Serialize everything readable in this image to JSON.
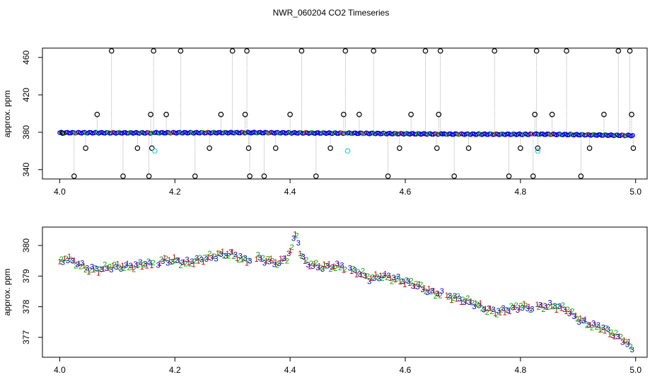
{
  "figure": {
    "title": "NWR_060204  CO2 Timeseries"
  },
  "chart_data": [
    {
      "type": "scatter",
      "panel": "top",
      "title": "",
      "xlabel": "",
      "ylabel": "approx. ppm",
      "xlim": [
        3.97,
        5.02
      ],
      "ylim": [
        330,
        470
      ],
      "xticks": [
        4.0,
        4.2,
        4.4,
        4.6,
        4.8,
        5.0
      ],
      "xtick_labels": [
        "4.0",
        "4.2",
        "4.4",
        "4.6",
        "4.8",
        "5.0"
      ],
      "yticks": [
        340,
        380,
        420,
        460
      ],
      "ytick_labels": [
        "340",
        "380",
        "420",
        "460"
      ],
      "grid": false,
      "legend": "none",
      "colors": {
        "baseline": "#0000cc",
        "baseline_alt": "#00aa00",
        "baseline_mark": "#cc3300",
        "outlier": "#000000",
        "flagged": "#33cccc",
        "spike": "#9a9a9a"
      },
      "baseline_segments": [
        {
          "x": [
            4.0,
            4.16
          ],
          "y": [
            379.5,
            379.3
          ]
        },
        {
          "x": [
            4.165,
            4.335
          ],
          "y": [
            379.4,
            379.6
          ]
        },
        {
          "x": [
            4.335,
            4.495
          ],
          "y": [
            379.6,
            379.0
          ]
        },
        {
          "x": [
            4.5,
            4.665
          ],
          "y": [
            379.0,
            378.0
          ]
        },
        {
          "x": [
            4.665,
            4.82
          ],
          "y": [
            378.0,
            377.8
          ]
        },
        {
          "x": [
            4.825,
            4.995
          ],
          "y": [
            378.0,
            376.5
          ]
        }
      ],
      "outliers": {
        "x": [
          4.005,
          4.025,
          4.045,
          4.065,
          4.09,
          4.11,
          4.135,
          4.155,
          4.158,
          4.16,
          4.163,
          4.185,
          4.21,
          4.235,
          4.26,
          4.28,
          4.3,
          4.322,
          4.325,
          4.328,
          4.33,
          4.355,
          4.375,
          4.4,
          4.42,
          4.445,
          4.47,
          4.493,
          4.496,
          4.52,
          4.545,
          4.57,
          4.59,
          4.61,
          4.635,
          4.655,
          4.658,
          4.661,
          4.685,
          4.71,
          4.755,
          4.78,
          4.8,
          4.822,
          4.825,
          4.828,
          4.83,
          4.855,
          4.88,
          4.905,
          4.92,
          4.945,
          4.97,
          4.99,
          4.993,
          4.996
        ],
        "y": [
          379,
          333,
          363,
          399,
          467,
          333,
          363,
          333,
          399,
          363,
          467,
          399,
          467,
          333,
          363,
          399,
          467,
          399,
          467,
          363,
          333,
          333,
          363,
          399,
          467,
          333,
          363,
          399,
          467,
          399,
          467,
          333,
          363,
          399,
          467,
          363,
          399,
          467,
          333,
          363,
          467,
          333,
          363,
          333,
          399,
          467,
          363,
          399,
          467,
          333,
          363,
          399,
          467,
          467,
          399,
          363
        ]
      },
      "flagged": {
        "x": [
          4.165,
          4.5,
          4.83
        ],
        "y": [
          360,
          360,
          360
        ]
      }
    },
    {
      "type": "scatter",
      "panel": "bottom",
      "title": "",
      "xlabel": "",
      "ylabel": "approx. ppm",
      "xlim": [
        3.97,
        5.02
      ],
      "ylim": [
        376.35,
        380.6
      ],
      "xticks": [
        4.0,
        4.2,
        4.4,
        4.6,
        4.8,
        5.0
      ],
      "xtick_labels": [
        "4.0",
        "4.2",
        "4.4",
        "4.6",
        "4.8",
        "5.0"
      ],
      "yticks": [
        377,
        378,
        379,
        380
      ],
      "ytick_labels": [
        "377",
        "378",
        "379",
        "380"
      ],
      "grid": false,
      "legend": "none",
      "marker_labels": [
        "1",
        "2",
        "3"
      ],
      "marker_colors": [
        "#cc0000",
        "#00aa00",
        "#0000cc"
      ],
      "x": [
        4.0,
        4.01,
        4.02,
        4.03,
        4.05,
        4.07,
        4.09,
        4.11,
        4.13,
        4.15,
        4.16,
        4.18,
        4.2,
        4.22,
        4.24,
        4.26,
        4.28,
        4.3,
        4.32,
        4.33,
        4.34,
        4.36,
        4.38,
        4.395,
        4.405,
        4.41,
        4.415,
        4.42,
        4.43,
        4.45,
        4.47,
        4.49,
        4.5,
        4.52,
        4.54,
        4.56,
        4.58,
        4.6,
        4.62,
        4.64,
        4.66,
        4.68,
        4.7,
        4.72,
        4.74,
        4.76,
        4.78,
        4.8,
        4.82,
        4.84,
        4.86,
        4.88,
        4.9,
        4.92,
        4.94,
        4.96,
        4.98,
        4.995
      ],
      "y": [
        379.4,
        379.6,
        379.5,
        379.4,
        379.2,
        379.2,
        379.3,
        379.3,
        379.3,
        379.4,
        379.35,
        379.5,
        379.5,
        379.4,
        379.5,
        379.6,
        379.7,
        379.7,
        379.5,
        379.5,
        379.6,
        379.5,
        379.4,
        379.6,
        380.0,
        380.5,
        380.0,
        379.6,
        379.4,
        379.3,
        379.3,
        379.3,
        379.2,
        379.1,
        378.9,
        379.0,
        378.9,
        378.8,
        378.7,
        378.5,
        378.4,
        378.3,
        378.2,
        378.1,
        377.9,
        377.8,
        377.9,
        378.0,
        377.95,
        378.0,
        378.0,
        377.9,
        377.6,
        377.4,
        377.3,
        377.1,
        376.9,
        376.6
      ]
    }
  ]
}
